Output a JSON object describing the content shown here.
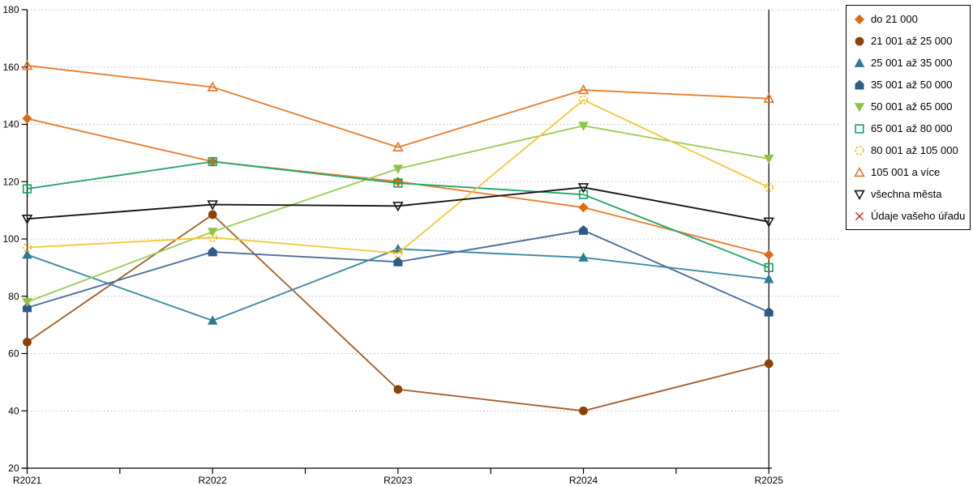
{
  "chart_data": {
    "type": "line",
    "title": "",
    "xlabel": "",
    "ylabel": "",
    "categories": [
      "R2021",
      "R2022",
      "R2023",
      "R2024",
      "R2025"
    ],
    "ylim": [
      20,
      180
    ],
    "yticks": [
      20,
      40,
      60,
      80,
      100,
      120,
      140,
      160,
      180
    ],
    "grid": "horizontal-dotted",
    "legend_position": "right-outside",
    "series": [
      {
        "name": "do 21 000",
        "marker": "diamond",
        "fill": "solid",
        "color": "#e06a10",
        "line": "#e87f2f",
        "values": [
          142,
          127,
          120,
          111,
          94.5
        ]
      },
      {
        "name": "21 001 až 25 000",
        "marker": "circle",
        "fill": "solid",
        "color": "#8e4207",
        "line": "#a7602a",
        "values": [
          64,
          108.5,
          47.5,
          40,
          56.5
        ]
      },
      {
        "name": "25 001 až 35 000",
        "marker": "triangle-up",
        "fill": "solid",
        "color": "#2b7b96",
        "line": "#3d8ba3",
        "values": [
          94.5,
          71.5,
          96.5,
          93.5,
          86
        ]
      },
      {
        "name": "35 001 až 50 000",
        "marker": "pentagon",
        "fill": "solid",
        "color": "#2e5a88",
        "line": "#4a6f9b",
        "values": [
          76,
          95.5,
          92,
          103,
          74.5
        ]
      },
      {
        "name": "50 001 až 65 000",
        "marker": "triangle-down",
        "fill": "solid",
        "color": "#8cc63f",
        "line": "#9ccd5a",
        "values": [
          78,
          102.5,
          124.5,
          139.5,
          128
        ]
      },
      {
        "name": "65 001 až 80 000",
        "marker": "square",
        "fill": "open",
        "color": "#17a05e",
        "line": "#2aa76b",
        "values": [
          117.5,
          127,
          119.5,
          115.5,
          90
        ]
      },
      {
        "name": "80 001 až 105 000",
        "marker": "circle",
        "fill": "open-dashed",
        "color": "#f2bc0e",
        "line": "#f4c93c",
        "values": [
          97,
          100.5,
          95,
          148.5,
          118
        ]
      },
      {
        "name": "105 001 a více",
        "marker": "triangle-up",
        "fill": "open",
        "color": "#e87428",
        "line": "#ea7f2e",
        "values": [
          160.5,
          153,
          132,
          152,
          149
        ]
      },
      {
        "name": "všechna města",
        "marker": "triangle-down",
        "fill": "open",
        "color": "#141414",
        "line": "#141414",
        "values": [
          107,
          112,
          111.5,
          118,
          106
        ]
      },
      {
        "name": "Údaje vašeho úřadu",
        "marker": "x",
        "fill": "open",
        "color": "#cf2f2f",
        "line": "#cf2f2f",
        "values": []
      }
    ],
    "colors": {
      "background": "#ffffff",
      "axis": "#000000",
      "grid": "#b9b9b9"
    }
  }
}
